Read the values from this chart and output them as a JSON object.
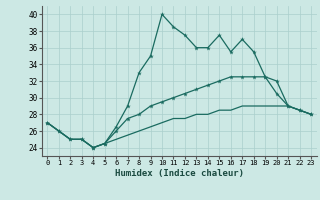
{
  "xlabel": "Humidex (Indice chaleur)",
  "ylabel": "",
  "bg_color": "#cce8e4",
  "grid_color": "#aacfcc",
  "line_color": "#1a6b60",
  "xlim": [
    -0.5,
    23.5
  ],
  "ylim": [
    23,
    41
  ],
  "xticks": [
    0,
    1,
    2,
    3,
    4,
    5,
    6,
    7,
    8,
    9,
    10,
    11,
    12,
    13,
    14,
    15,
    16,
    17,
    18,
    19,
    20,
    21,
    22,
    23
  ],
  "yticks": [
    24,
    26,
    28,
    30,
    32,
    34,
    36,
    38,
    40
  ],
  "line1": [
    27,
    26,
    25,
    25,
    24,
    24.5,
    26.5,
    29,
    33,
    35,
    40,
    38.5,
    37.5,
    36,
    36,
    37.5,
    35.5,
    37,
    35.5,
    32.5,
    30.5,
    29,
    28.5,
    28
  ],
  "line2": [
    27,
    26,
    25,
    25,
    24,
    24.5,
    26,
    27.5,
    28,
    29,
    29.5,
    30,
    30.5,
    31,
    31.5,
    32,
    32.5,
    32.5,
    32.5,
    32.5,
    32,
    29,
    28.5,
    28
  ],
  "line3": [
    27,
    26,
    25,
    25,
    24,
    24.5,
    25,
    25.5,
    26,
    26.5,
    27,
    27.5,
    27.5,
    28,
    28,
    28.5,
    28.5,
    29,
    29,
    29,
    29,
    29,
    28.5,
    28
  ]
}
